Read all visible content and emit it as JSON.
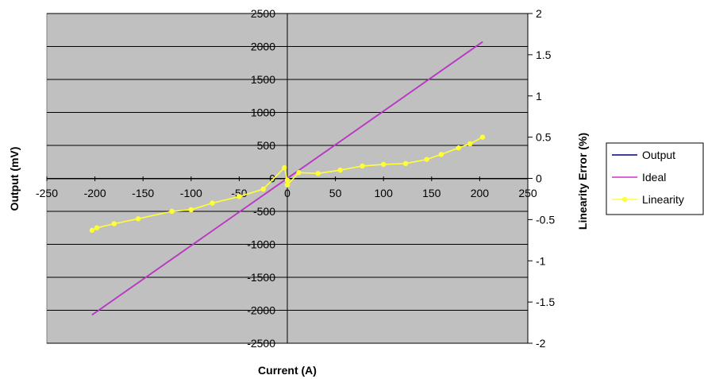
{
  "chart_data": {
    "type": "line",
    "xlabel": "Current (A)",
    "ylabel": "Output (mV)",
    "y2label": "Linearity Error (%)",
    "xlim": [
      -250,
      250
    ],
    "ylim": [
      -2500,
      2500
    ],
    "y2lim": [
      -2,
      2
    ],
    "x_ticks": [
      "-250",
      "-200",
      "-150",
      "-100",
      "-50",
      "0",
      "50",
      "100",
      "150",
      "200",
      "250"
    ],
    "y_ticks": [
      "2500",
      "2000",
      "1500",
      "1000",
      "500",
      "0",
      "-500",
      "-1000",
      "-1500",
      "-2000",
      "-2500"
    ],
    "y2_ticks": [
      "2",
      "1.5",
      "1",
      "0.5",
      "0",
      "-0.5",
      "-1",
      "-1.5",
      "-2"
    ],
    "grid": "horizontal",
    "plot_background": "#c0c0c0",
    "legend_position": "right",
    "series": [
      {
        "name": "Output",
        "color": "#000080",
        "axis": "left",
        "x": [
          -203,
          203
        ],
        "y": [
          -2070,
          2070
        ]
      },
      {
        "name": "Ideal",
        "color": "#cc33cc",
        "axis": "left",
        "x": [
          -203,
          203
        ],
        "y": [
          -2070,
          2070
        ]
      },
      {
        "name": "Linearity",
        "color": "#ffff33",
        "axis": "right",
        "marker": "circle",
        "x": [
          -203,
          -198,
          -180,
          -155,
          -120,
          -100,
          -78,
          -50,
          -25,
          -3,
          0,
          0,
          12,
          32,
          55,
          78,
          100,
          123,
          145,
          160,
          178,
          190,
          203
        ],
        "y": [
          -0.63,
          -0.6,
          -0.55,
          -0.49,
          -0.4,
          -0.38,
          -0.3,
          -0.22,
          -0.13,
          0.13,
          -0.02,
          -0.08,
          0.07,
          0.06,
          0.1,
          0.15,
          0.17,
          0.18,
          0.23,
          0.29,
          0.37,
          0.42,
          0.5
        ]
      }
    ]
  }
}
